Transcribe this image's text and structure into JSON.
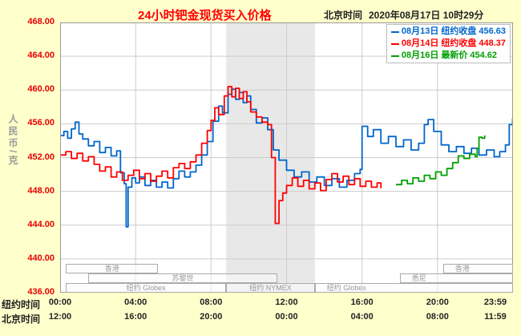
{
  "header": {
    "title": "24小时钯金现货买入价格",
    "timezone_label": "北京时间",
    "datetime": "2020年08月17日 10时29分"
  },
  "legend": [
    {
      "date": "08月13日",
      "label": "纽约收盘",
      "value": "456.63",
      "color": "#0066CC"
    },
    {
      "date": "08月14日",
      "label": "纽约收盘",
      "value": "448.37",
      "color": "#FF0000"
    },
    {
      "date": "08月16日",
      "label": "最新价",
      "value": "454.62",
      "color": "#00A000"
    }
  ],
  "y_axis": {
    "title": "人民币/克",
    "min": 436,
    "max": 468,
    "tick_step": 4,
    "tick_labels": [
      "468.00",
      "464.00",
      "460.00",
      "456.00",
      "452.00",
      "448.00",
      "444.00",
      "440.00",
      "436.00"
    ]
  },
  "x_axis": {
    "row1_label": "纽约时间",
    "row2_label": "北京时间",
    "tick_hours": [
      0,
      4,
      8,
      12,
      16,
      20,
      23.983
    ],
    "row1_ticks": [
      "00:00",
      "04:00",
      "08:00",
      "12:00",
      "16:00",
      "20:00",
      "23:59"
    ],
    "row2_ticks": [
      "12:00",
      "16:00",
      "20:00",
      "00:00",
      "04:00",
      "08:00",
      "11:59"
    ]
  },
  "sessions": [
    {
      "label": "香港",
      "row": 0,
      "start": 0.3,
      "end": 5.2,
      "align": "center"
    },
    {
      "label": "苏黎世",
      "row": 1,
      "start": 1.5,
      "end": 11.5,
      "align": "center"
    },
    {
      "label": "纽约 Globex",
      "row": 2,
      "start": 0.3,
      "end": 8.8,
      "align": "center"
    },
    {
      "label": "纽约 NYMEX",
      "row": 2,
      "start": 8.8,
      "end": 13.5,
      "align": "center"
    },
    {
      "label": "纽约 Globex",
      "row": 2,
      "start": 13.5,
      "end": 24,
      "align": "left"
    },
    {
      "label": "悉尼",
      "row": 1,
      "start": 18.0,
      "end": 24,
      "align": "left"
    },
    {
      "label": "香港",
      "row": 0,
      "start": 20.3,
      "end": 24,
      "align": "left"
    }
  ],
  "chart_data": {
    "type": "line",
    "step": true,
    "title": "24小时钯金现货买入价格",
    "ylabel": "人民币/克",
    "ylim": [
      436,
      468
    ],
    "x_unit": "hour (纽约时间 00:00–23:59)",
    "grid": true,
    "band": {
      "start": 8.8,
      "end": 13.5,
      "color": "#E8E8E8"
    },
    "series": [
      {
        "name": "08月13日 纽约收盘",
        "close": 456.63,
        "color": "#0066CC",
        "points": [
          [
            0,
            454.6
          ],
          [
            0.2,
            455.1
          ],
          [
            0.4,
            454.3
          ],
          [
            0.6,
            455.4
          ],
          [
            0.8,
            456.2
          ],
          [
            1,
            454.8
          ],
          [
            1.2,
            454.2
          ],
          [
            1.5,
            453.4
          ],
          [
            1.8,
            453.9
          ],
          [
            2.1,
            452.6
          ],
          [
            2.4,
            453.2
          ],
          [
            2.7,
            452.2
          ],
          [
            3,
            452.8
          ],
          [
            3.2,
            450.2
          ],
          [
            3.4,
            448.9
          ],
          [
            3.5,
            443.8
          ],
          [
            3.6,
            448.5
          ],
          [
            3.8,
            449.6
          ],
          [
            4,
            449.0
          ],
          [
            4.2,
            449.7
          ],
          [
            4.5,
            448.7
          ],
          [
            4.8,
            449.3
          ],
          [
            5.1,
            448.5
          ],
          [
            5.4,
            449.1
          ],
          [
            5.7,
            448.4
          ],
          [
            6,
            449.5
          ],
          [
            6.3,
            450.4
          ],
          [
            6.6,
            449.7
          ],
          [
            6.9,
            450.3
          ],
          [
            7.2,
            451.1
          ],
          [
            7.5,
            452.3
          ],
          [
            7.8,
            453.9
          ],
          [
            8.1,
            456.3
          ],
          [
            8.4,
            458.1
          ],
          [
            8.6,
            457.3
          ],
          [
            8.9,
            459.5
          ],
          [
            9.1,
            460.1
          ],
          [
            9.3,
            458.9
          ],
          [
            9.5,
            459.7
          ],
          [
            9.7,
            458.5
          ],
          [
            9.9,
            459.3
          ],
          [
            10.1,
            457.7
          ],
          [
            10.4,
            456.1
          ],
          [
            10.7,
            456.7
          ],
          [
            11,
            455.3
          ],
          [
            11.3,
            452.9
          ],
          [
            11.6,
            451.7
          ],
          [
            12,
            450.5
          ],
          [
            12.4,
            449.7
          ],
          [
            12.8,
            450.3
          ],
          [
            13.2,
            449.1
          ],
          [
            13.6,
            449.7
          ],
          [
            14,
            448.7
          ],
          [
            14.4,
            449.5
          ],
          [
            14.8,
            448.5
          ],
          [
            15.2,
            449.3
          ],
          [
            15.6,
            450.1
          ],
          [
            15.9,
            450.6
          ],
          [
            16,
            455.7
          ],
          [
            16.3,
            454.5
          ],
          [
            16.6,
            455.3
          ],
          [
            17,
            453.7
          ],
          [
            17.4,
            454.5
          ],
          [
            17.8,
            453.3
          ],
          [
            18.2,
            454.1
          ],
          [
            18.6,
            452.9
          ],
          [
            19,
            453.7
          ],
          [
            19.3,
            455.9
          ],
          [
            19.5,
            456.5
          ],
          [
            19.8,
            455.1
          ],
          [
            20.2,
            453.5
          ],
          [
            20.6,
            452.7
          ],
          [
            21,
            453.3
          ],
          [
            21.4,
            452.5
          ],
          [
            21.8,
            453.1
          ],
          [
            22.2,
            452.3
          ],
          [
            22.6,
            452.9
          ],
          [
            23,
            452.1
          ],
          [
            23.3,
            452.7
          ],
          [
            23.6,
            453.5
          ],
          [
            23.8,
            455.9
          ],
          [
            23.98,
            456.63
          ]
        ]
      },
      {
        "name": "08月14日 纽约收盘",
        "close": 448.37,
        "color": "#FF0000",
        "points": [
          [
            0,
            452.3
          ],
          [
            0.3,
            452.7
          ],
          [
            0.6,
            451.9
          ],
          [
            0.9,
            452.5
          ],
          [
            1.2,
            451.6
          ],
          [
            1.5,
            452.1
          ],
          [
            1.8,
            451.2
          ],
          [
            2.1,
            450.4
          ],
          [
            2.4,
            450.9
          ],
          [
            2.7,
            449.7
          ],
          [
            3,
            450.3
          ],
          [
            3.3,
            449.3
          ],
          [
            3.6,
            449.9
          ],
          [
            3.9,
            450.5
          ],
          [
            4.2,
            449.5
          ],
          [
            4.5,
            450.1
          ],
          [
            4.8,
            449.2
          ],
          [
            5.1,
            449.8
          ],
          [
            5.4,
            450.4
          ],
          [
            5.7,
            449.6
          ],
          [
            6,
            450.8
          ],
          [
            6.3,
            451.3
          ],
          [
            6.6,
            450.7
          ],
          [
            6.9,
            451.5
          ],
          [
            7.2,
            452.3
          ],
          [
            7.5,
            453.7
          ],
          [
            7.8,
            455.2
          ],
          [
            8,
            456.4
          ],
          [
            8.2,
            457.9
          ],
          [
            8.4,
            457.1
          ],
          [
            8.7,
            459.3
          ],
          [
            8.9,
            460.4
          ],
          [
            9.1,
            459.2
          ],
          [
            9.3,
            460.2
          ],
          [
            9.5,
            459.0
          ],
          [
            9.7,
            459.8
          ],
          [
            9.9,
            458.6
          ],
          [
            10.1,
            457.4
          ],
          [
            10.4,
            456.8
          ],
          [
            10.7,
            456.2
          ],
          [
            11,
            455.9
          ],
          [
            11.2,
            452.0
          ],
          [
            11.4,
            444.2
          ],
          [
            11.6,
            446.9
          ],
          [
            11.8,
            447.8
          ],
          [
            12,
            448.7
          ],
          [
            12.3,
            449.6
          ],
          [
            12.6,
            448.6
          ],
          [
            12.9,
            449.3
          ],
          [
            13.2,
            448.3
          ],
          [
            13.5,
            449.0
          ],
          [
            13.8,
            448.1
          ],
          [
            14.1,
            449.4
          ],
          [
            14.4,
            450.1
          ],
          [
            14.7,
            449.1
          ],
          [
            15,
            449.8
          ],
          [
            15.3,
            448.8
          ],
          [
            15.6,
            449.5
          ],
          [
            15.9,
            448.6
          ],
          [
            16.2,
            449.2
          ],
          [
            16.5,
            448.5
          ],
          [
            16.8,
            449.0
          ],
          [
            17,
            448.37
          ]
        ]
      },
      {
        "name": "08月16日 最新价",
        "close": 454.62,
        "color": "#00A000",
        "points": [
          [
            17.8,
            448.8
          ],
          [
            18.1,
            449.3
          ],
          [
            18.4,
            448.9
          ],
          [
            18.7,
            449.6
          ],
          [
            19,
            449.2
          ],
          [
            19.3,
            449.9
          ],
          [
            19.6,
            449.5
          ],
          [
            19.9,
            450.3
          ],
          [
            20.2,
            449.9
          ],
          [
            20.5,
            450.7
          ],
          [
            20.8,
            451.4
          ],
          [
            21.1,
            452.2
          ],
          [
            21.4,
            451.9
          ],
          [
            21.7,
            452.4
          ],
          [
            22,
            452.1
          ],
          [
            22.1,
            453.1
          ],
          [
            22.2,
            454.4
          ],
          [
            22.35,
            454.3
          ],
          [
            22.5,
            454.62
          ]
        ]
      }
    ]
  }
}
